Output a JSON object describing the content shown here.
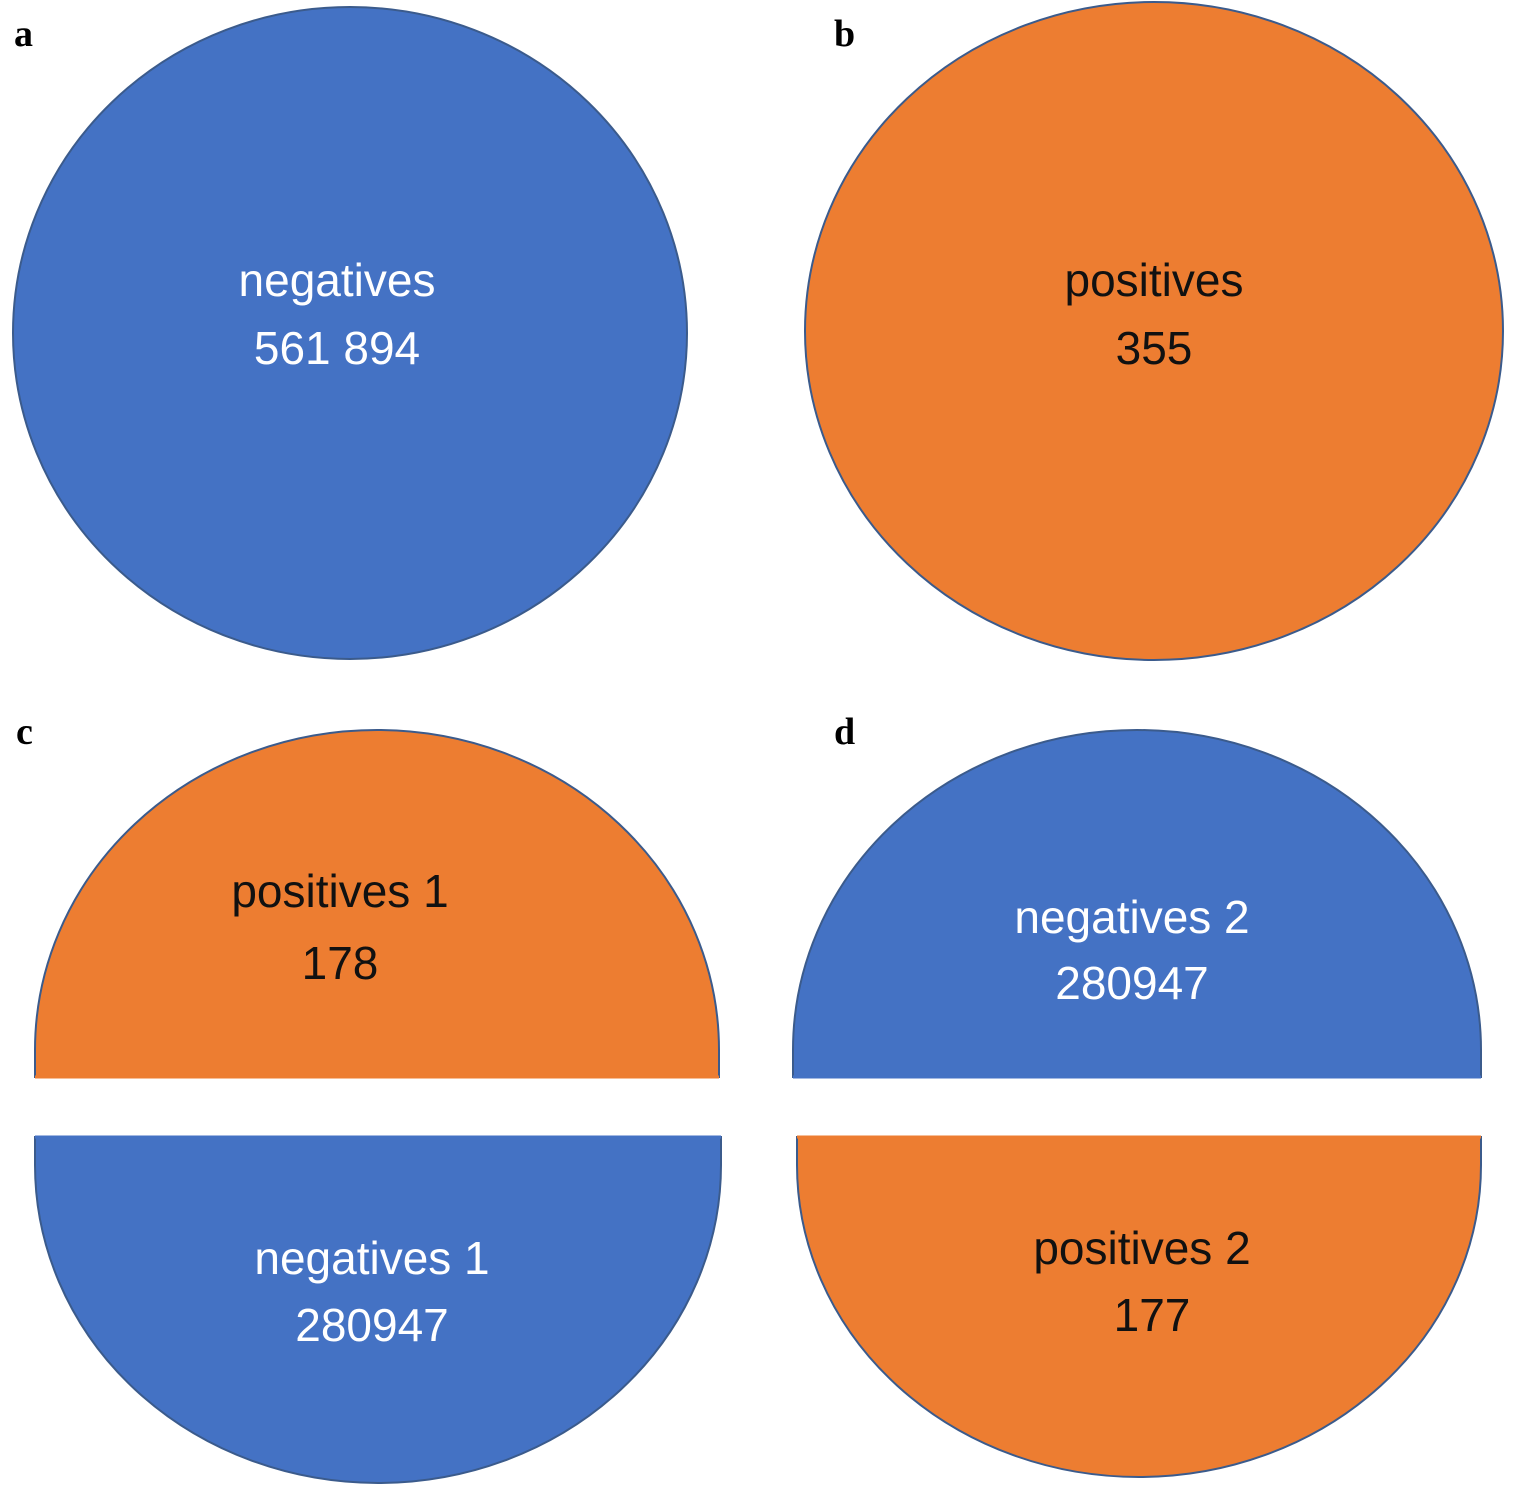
{
  "colors": {
    "blue": "#4472C4",
    "orange": "#ED7D31",
    "outline": "#3B5B8C"
  },
  "panels": {
    "a": {
      "letter": "a",
      "label": "negatives",
      "count": "561 894"
    },
    "b": {
      "letter": "b",
      "label": "positives",
      "count": "355"
    },
    "c": {
      "letter": "c",
      "top": {
        "label": "positives 1",
        "count": "178"
      },
      "bottom": {
        "label": "negatives 1",
        "count": "280947"
      }
    },
    "d": {
      "letter": "d",
      "top": {
        "label": "negatives 2",
        "count": "280947"
      },
      "bottom": {
        "label": "positives 2",
        "count": "177"
      }
    }
  }
}
